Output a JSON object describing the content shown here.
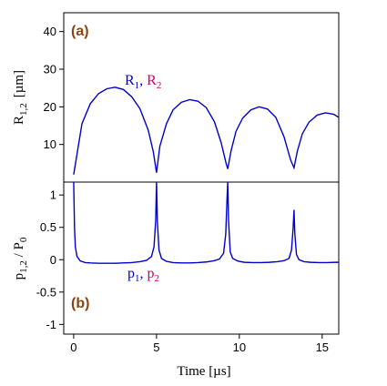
{
  "chart_data": [
    {
      "type": "line",
      "panel_label": "(a)",
      "ylabel": {
        "main": "R",
        "sub": "1,2",
        "unit": "[µm]"
      },
      "ylim": [
        0,
        45
      ],
      "yticks": [
        10,
        20,
        30,
        40
      ],
      "xlim": [
        -0.6,
        16
      ],
      "annotation": [
        {
          "text": "R",
          "sub": "1",
          "sep": ", ",
          "color": "#0000CC"
        },
        {
          "text": "R",
          "sub": "2",
          "color": "#CC0066"
        }
      ],
      "series": [
        {
          "color": "#0000CC",
          "x": [
            0,
            0.5,
            1.0,
            1.5,
            2.0,
            2.5,
            3.0,
            3.5,
            4.0,
            4.5,
            4.8,
            4.95,
            5.0,
            5.2,
            5.6,
            6.0,
            6.5,
            7.0,
            7.5,
            8.0,
            8.5,
            8.9,
            9.2,
            9.3,
            9.5,
            9.8,
            10.2,
            10.7,
            11.2,
            11.7,
            12.2,
            12.7,
            13.1,
            13.3,
            13.5,
            13.8,
            14.2,
            14.7,
            15.2,
            15.7,
            16.0
          ],
          "y": [
            2,
            15.5,
            20.8,
            23.5,
            24.8,
            25.2,
            24.6,
            22.7,
            19.5,
            13.8,
            8.2,
            4.0,
            2.5,
            9.5,
            15.5,
            19.2,
            21.2,
            21.9,
            21.5,
            19.8,
            16.0,
            10.5,
            5.0,
            3.5,
            8.3,
            13.5,
            17.0,
            19.2,
            20.0,
            19.4,
            17.2,
            12.0,
            5.8,
            3.8,
            8.2,
            12.8,
            15.9,
            17.8,
            18.4,
            18.0,
            17.2
          ]
        }
      ]
    },
    {
      "type": "line",
      "panel_label": "(b)",
      "xlabel": "Time  [µs]",
      "ylabel": {
        "main": "p",
        "sub": "1,2",
        "tail": " / P",
        "sub2": "0"
      },
      "ylim": [
        -1.15,
        1.2
      ],
      "yticks": [
        -1,
        -0.5,
        0,
        0.5,
        1
      ],
      "xlim": [
        -0.6,
        16
      ],
      "xticks": [
        0,
        5,
        10,
        15
      ],
      "annotation": [
        {
          "text": "p",
          "sub": "1",
          "sep": ", ",
          "color": "#0000CC"
        },
        {
          "text": "p",
          "sub": "2",
          "color": "#CC0066"
        }
      ],
      "series": [
        {
          "color": "#0000CC",
          "x": [
            0,
            0.05,
            0.1,
            0.2,
            0.4,
            0.7,
            1.0,
            1.5,
            2.0,
            2.5,
            3.0,
            3.5,
            4.0,
            4.4,
            4.7,
            4.85,
            4.95,
            5.0,
            5.05,
            5.15,
            5.3,
            5.6,
            6.0,
            6.5,
            7.0,
            7.5,
            8.0,
            8.5,
            8.8,
            9.05,
            9.18,
            9.25,
            9.3,
            9.35,
            9.45,
            9.6,
            9.9,
            10.3,
            10.8,
            11.3,
            11.8,
            12.3,
            12.7,
            13.0,
            13.15,
            13.25,
            13.3,
            13.35,
            13.45,
            13.6,
            13.9,
            14.3,
            14.8,
            15.3,
            15.8,
            16.0
          ],
          "y": [
            1.2,
            0.5,
            0.2,
            0.05,
            -0.02,
            -0.045,
            -0.05,
            -0.055,
            -0.055,
            -0.055,
            -0.05,
            -0.045,
            -0.03,
            -0.01,
            0.05,
            0.2,
            0.6,
            1.2,
            0.6,
            0.15,
            0.02,
            -0.025,
            -0.045,
            -0.05,
            -0.05,
            -0.045,
            -0.035,
            -0.015,
            0.01,
            0.1,
            0.4,
            0.9,
            1.2,
            0.6,
            0.12,
            0.02,
            -0.02,
            -0.04,
            -0.045,
            -0.045,
            -0.04,
            -0.03,
            -0.015,
            0.02,
            0.15,
            0.5,
            0.77,
            0.4,
            0.08,
            0.0,
            -0.03,
            -0.04,
            -0.045,
            -0.045,
            -0.04,
            -0.04
          ]
        }
      ]
    }
  ]
}
